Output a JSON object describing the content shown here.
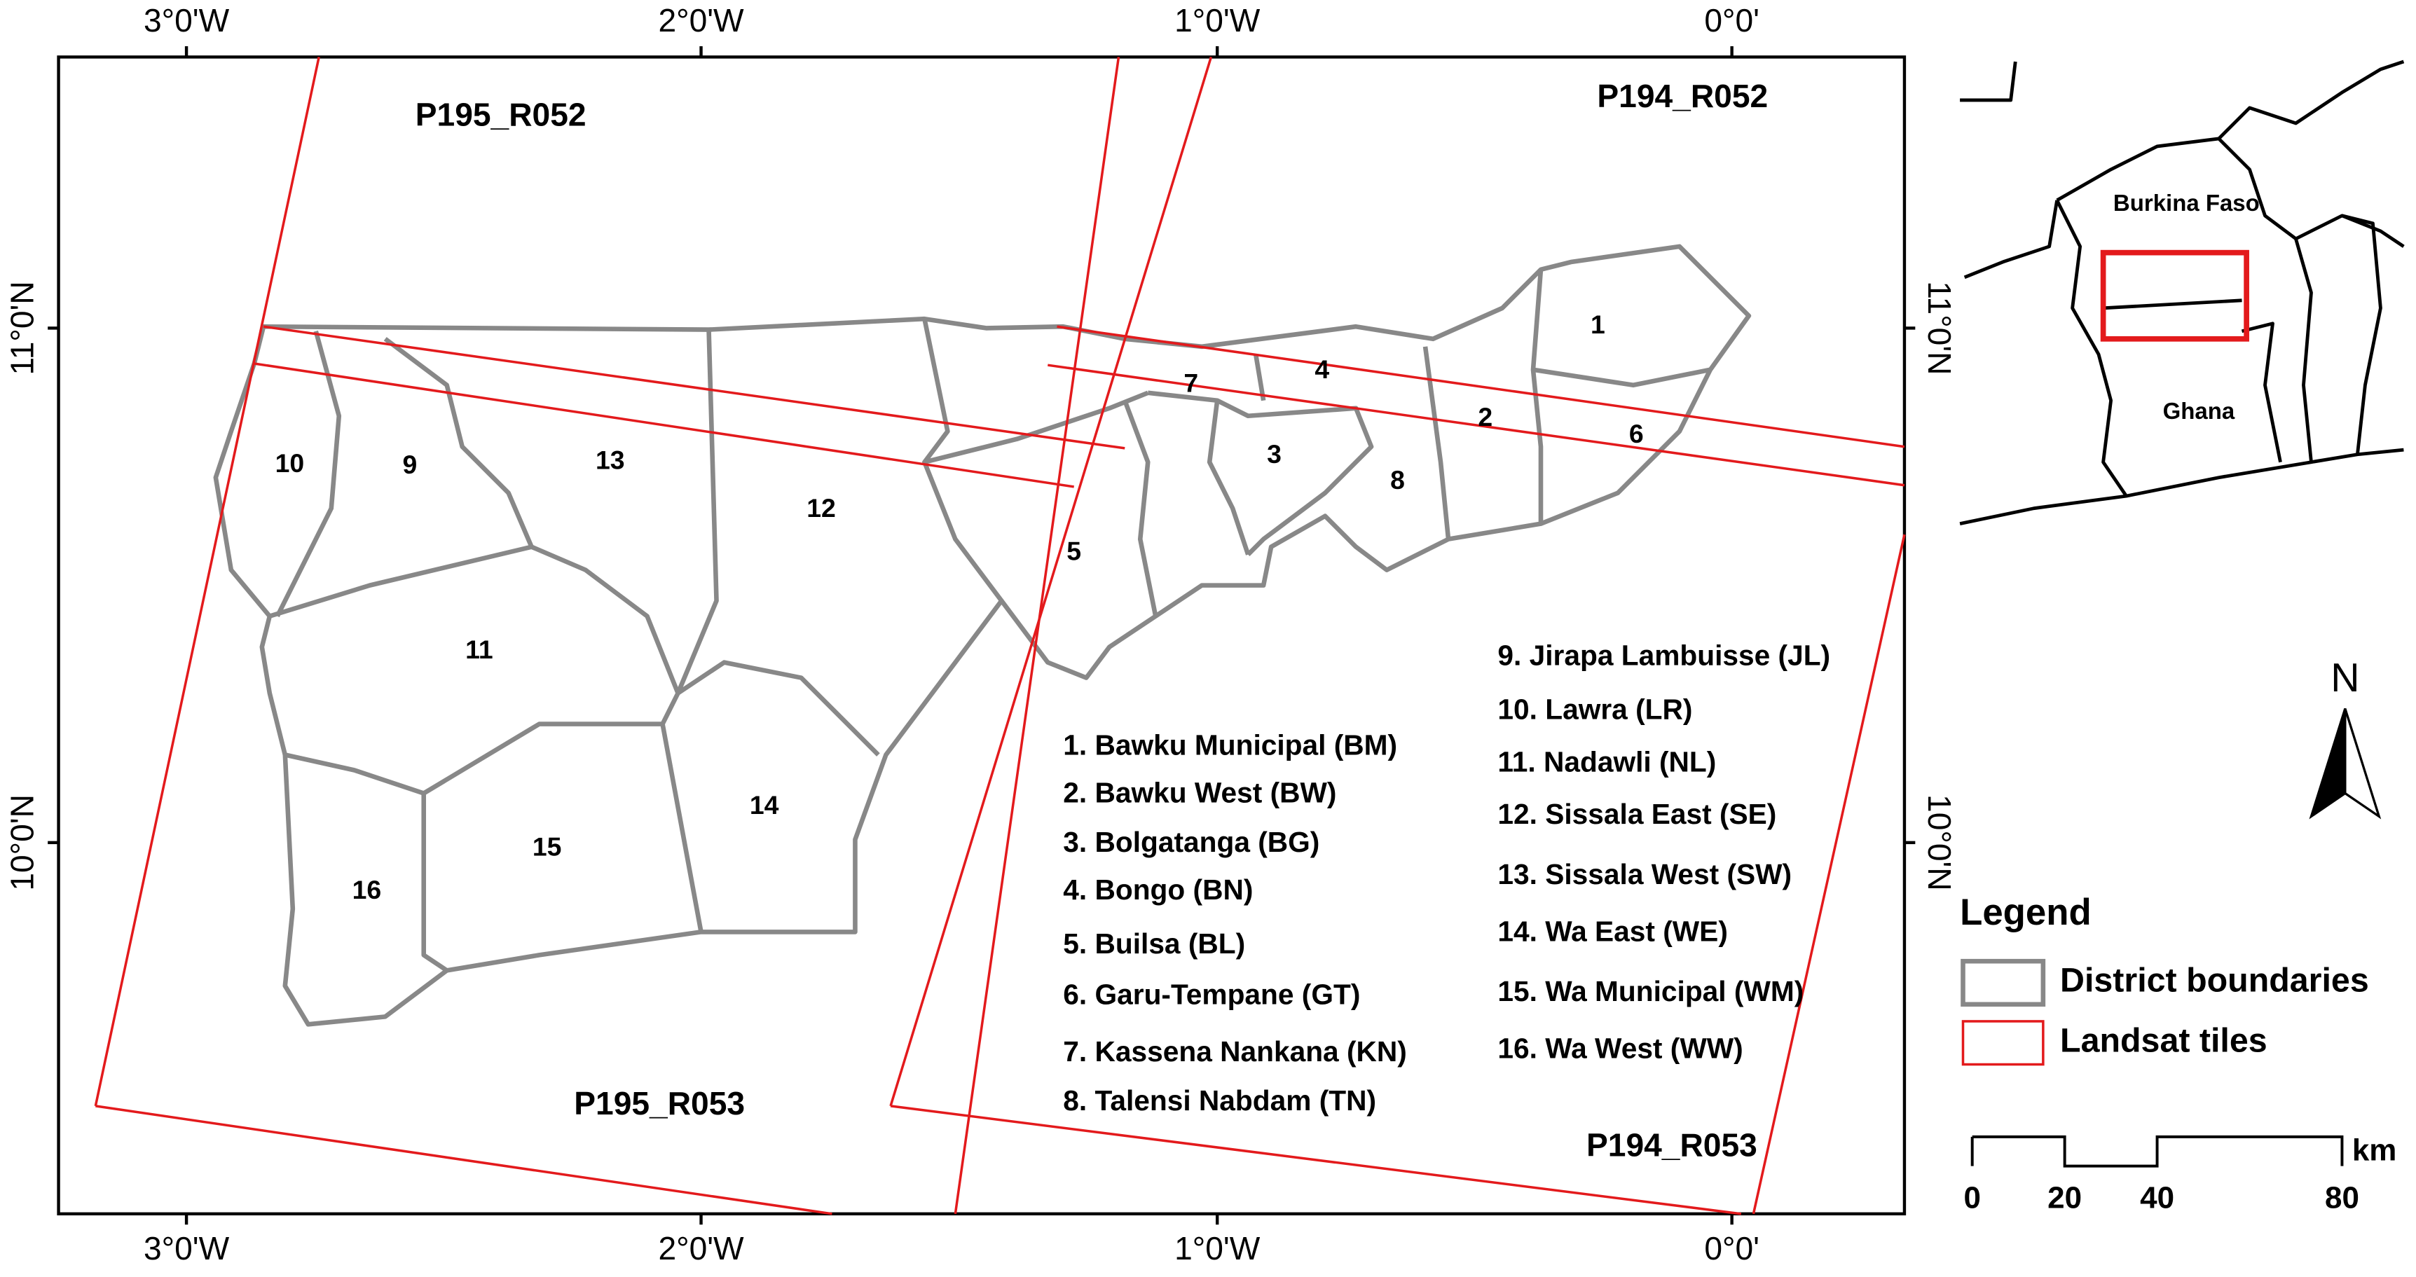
{
  "map": {
    "top_ticks": [
      "3°0'W",
      "2°0'W",
      "1°0'W",
      "0°0'"
    ],
    "bottom_ticks": [
      "3°0'W",
      "2°0'W",
      "1°0'W",
      "0°0'"
    ],
    "left_ticks": [
      "11°0'N",
      "10°0'N"
    ],
    "right_ticks": [
      "11°0'N",
      "10°0'N"
    ],
    "tiles": [
      "P195_R052",
      "P194_R052",
      "P195_R053",
      "P194_R053"
    ],
    "district_numbers": [
      "1",
      "2",
      "3",
      "4",
      "5",
      "6",
      "7",
      "8",
      "9",
      "10",
      "11",
      "12",
      "13",
      "14",
      "15",
      "16"
    ],
    "districts": [
      "1. Bawku Municipal (BM)",
      "2. Bawku West (BW)",
      "3. Bolgatanga (BG)",
      "4. Bongo (BN)",
      "5. Builsa (BL)",
      "6. Garu-Tempane (GT)",
      "7. Kassena Nankana (KN)",
      "8. Talensi Nabdam (TN)",
      "9. Jirapa Lambuisse (JL)",
      "10. Lawra (LR)",
      "11. Nadawli (NL)",
      "12. Sissala East (SE)",
      "13. Sissala West (SW)",
      "14. Wa East (WE)",
      "15. Wa Municipal (WM)",
      "16. Wa West (WW)"
    ]
  },
  "inset": {
    "labels": [
      "Burkina Faso",
      "Ghana"
    ]
  },
  "north": "N",
  "legend": {
    "title": "Legend",
    "items": [
      "District boundaries",
      "Landsat tiles"
    ]
  },
  "scale_bar": {
    "unit": "km",
    "ticks": [
      "0",
      "20",
      "40",
      "80"
    ]
  }
}
